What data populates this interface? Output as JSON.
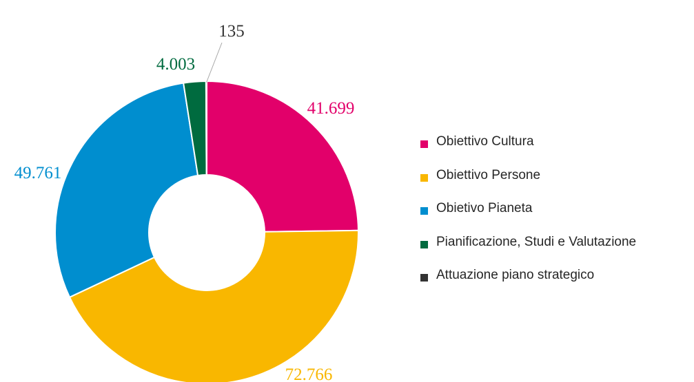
{
  "chart_data": {
    "type": "pie",
    "donut": true,
    "title": "",
    "legend_position": "right",
    "number_format": "it-IT",
    "slices": [
      {
        "name": "Obiettivo Cultura",
        "value": 41699,
        "label": "41.699",
        "color": "#E2006A"
      },
      {
        "name": "Obiettivo Persone",
        "value": 72766,
        "label": "72.766",
        "color": "#F9B700"
      },
      {
        "name": "Obietivo Pianeta",
        "value": 49761,
        "label": "49.761",
        "color": "#008ECF"
      },
      {
        "name": "Pianificazione, Studi e Valutazione",
        "value": 4003,
        "label": "4.003",
        "color": "#006B3F"
      },
      {
        "name": "Attuazione piano strategico",
        "value": 135,
        "label": "135",
        "color": "#333333"
      }
    ]
  }
}
